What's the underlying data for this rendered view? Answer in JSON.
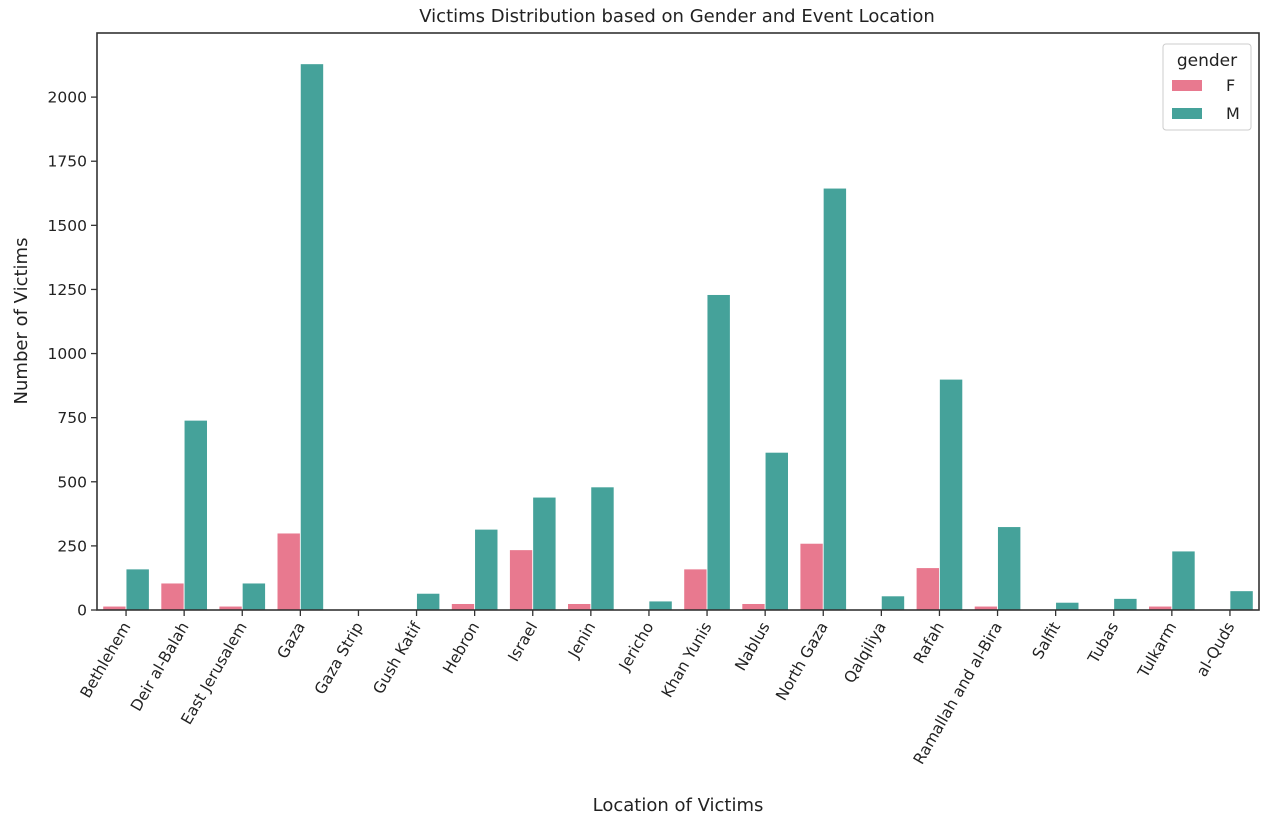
{
  "chart_data": {
    "type": "bar",
    "title": "Victims Distribution based on Gender and Event Location",
    "xlabel": "Location of Victims",
    "ylabel": "Number of Victims",
    "ylim": [
      0,
      2250
    ],
    "yticks": [
      0,
      250,
      500,
      750,
      1000,
      1250,
      1500,
      1750,
      2000
    ],
    "categories": [
      "Bethlehem",
      "Deir al-Balah",
      "East Jerusalem",
      "Gaza",
      "Gaza Strip",
      "Gush Katif",
      "Hebron",
      "Israel",
      "Jenin",
      "Jericho",
      "Khan Yunis",
      "Nablus",
      "North Gaza",
      "Qalqiliya",
      "Rafah",
      "Ramallah and al-Bira",
      "Salfit",
      "Tubas",
      "Tulkarm",
      "al-Quds"
    ],
    "series": [
      {
        "name": "F",
        "color": "#e8798f",
        "values": [
          15,
          105,
          15,
          300,
          0,
          0,
          25,
          235,
          25,
          0,
          160,
          25,
          260,
          0,
          165,
          15,
          0,
          0,
          15,
          0
        ]
      },
      {
        "name": "M",
        "color": "#45a29a",
        "values": [
          160,
          740,
          105,
          2130,
          0,
          65,
          315,
          440,
          480,
          35,
          1230,
          615,
          1645,
          55,
          900,
          325,
          30,
          45,
          230,
          75
        ]
      }
    ],
    "legend": {
      "title": "gender",
      "position": "top-right"
    },
    "grid": false
  }
}
